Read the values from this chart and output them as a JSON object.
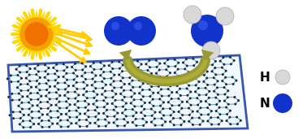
{
  "fig_width": 3.78,
  "fig_height": 1.71,
  "dpi": 100,
  "bg_color": "#ffffff",
  "sun_color_inner": "#f07000",
  "sun_color_mid": "#f5a000",
  "sun_color_outer": "#ffd700",
  "sun_ray_color": "#ffcc00",
  "sheet_fill": "#f0f8ff",
  "sheet_border_color": "#2244aa",
  "hex_edge_color": "#5599bb",
  "hex_node_color": "#1a2a3a",
  "N_color": "#1133cc",
  "H_color": "#d8d8d8",
  "H_outline": "#aaaaaa",
  "bond_color": "#333333",
  "arrow_color": "#999933",
  "ray_color": "#ffcc00",
  "legend_H": "H",
  "legend_N": "N"
}
